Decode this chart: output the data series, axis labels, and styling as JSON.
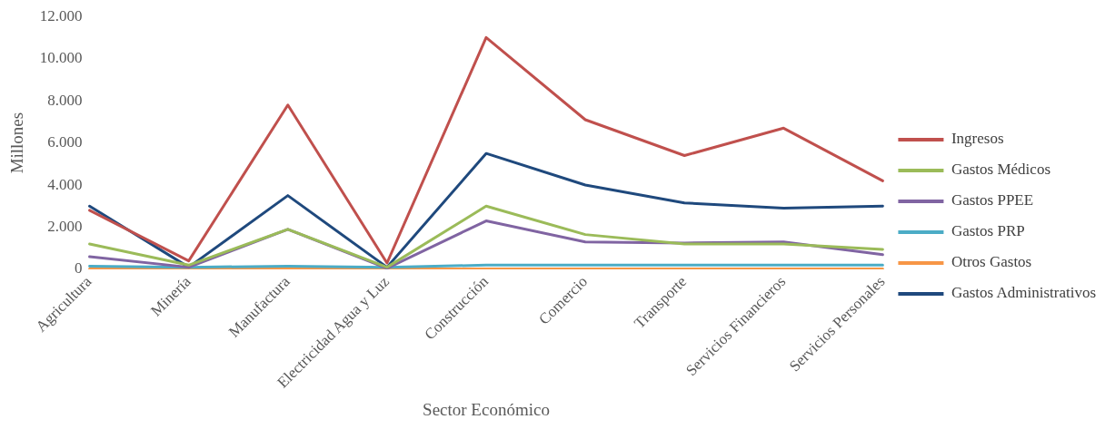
{
  "chart_data": {
    "type": "line",
    "xlabel": "Sector Económico",
    "ylabel": "Millones",
    "categories": [
      "Agricultura",
      "Minería",
      "Manufactura",
      "Electricidad Agua y Luz",
      "Construcción",
      "Comercio",
      "Transporte",
      "Servicios Financieros",
      "Servicios Personales"
    ],
    "series": [
      {
        "name": "Ingresos",
        "color": "#c0504d",
        "values": [
          2800,
          400,
          7800,
          300,
          11000,
          7100,
          5400,
          6700,
          4200
        ]
      },
      {
        "name": "Gastos Médicos",
        "color": "#9bbb59",
        "values": [
          1200,
          200,
          1900,
          100,
          3000,
          1650,
          1200,
          1200,
          950
        ]
      },
      {
        "name": "Gastos PPEE",
        "color": "#8064a2",
        "values": [
          600,
          100,
          1900,
          50,
          2300,
          1300,
          1250,
          1300,
          700
        ]
      },
      {
        "name": "Gastos PRP",
        "color": "#4bacc6",
        "values": [
          150,
          100,
          150,
          100,
          200,
          200,
          200,
          200,
          200
        ]
      },
      {
        "name": "Otros Gastos",
        "color": "#f79646",
        "values": [
          20,
          20,
          20,
          20,
          20,
          20,
          20,
          20,
          20
        ]
      },
      {
        "name": "Gastos Administrativos",
        "color": "#1f497d",
        "values": [
          3000,
          100,
          3500,
          100,
          5500,
          4000,
          3150,
          2900,
          3000
        ]
      }
    ],
    "ylim": [
      0,
      12000
    ],
    "yticks": [
      {
        "value": 0,
        "label": "0"
      },
      {
        "value": 2000,
        "label": "2.000"
      },
      {
        "value": 4000,
        "label": "4.000"
      },
      {
        "value": 6000,
        "label": "6.000"
      },
      {
        "value": 8000,
        "label": "8.000"
      },
      {
        "value": 10000,
        "label": "10.000"
      },
      {
        "value": 12000,
        "label": "12.000"
      }
    ],
    "grid": false,
    "legend": "right",
    "marker": "none",
    "line_style": "solid"
  }
}
